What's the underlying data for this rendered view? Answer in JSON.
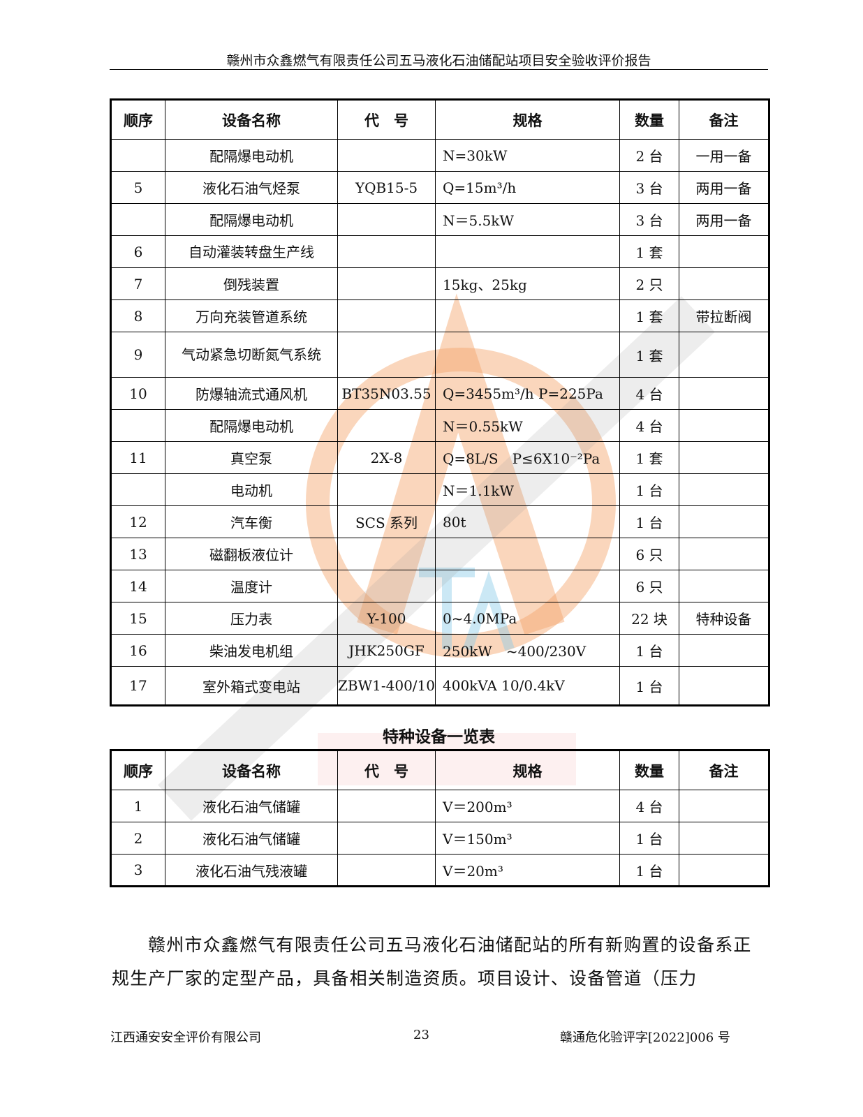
{
  "header": {
    "title": "赣州市众鑫燃气有限责任公司五马液化石油储配站项目安全验收评价报告"
  },
  "columns": [
    "顺序",
    "设备名称",
    "代　号",
    "规格",
    "数量",
    "备注"
  ],
  "equipment_rows": [
    [
      "",
      "配隔爆电动机",
      "",
      "N=30kW",
      "2 台",
      "一用一备"
    ],
    [
      "5",
      "液化石油气烃泵",
      "YQB15-5",
      "Q=15m³/h",
      "3 台",
      "两用一备"
    ],
    [
      "",
      "配隔爆电动机",
      "",
      "N＝5.5kW",
      "3 台",
      "两用一备"
    ],
    [
      "6",
      "自动灌装转盘生产线",
      "",
      "",
      "1 套",
      ""
    ],
    [
      "7",
      "倒残装置",
      "",
      "15kg、25kg",
      "2 只",
      ""
    ],
    [
      "8",
      "万向充装管道系统",
      "",
      "",
      "1 套",
      "带拉断阀"
    ],
    [
      "9",
      "气动紧急切断氮气系统",
      "",
      "",
      "1 套",
      ""
    ],
    [
      "10",
      "防爆轴流式通风机",
      "BT35N03.55",
      "Q=3455m³/h P=225Pa",
      "4 台",
      ""
    ],
    [
      "",
      "配隔爆电动机",
      "",
      "N＝0.55kW",
      "4 台",
      ""
    ],
    [
      "11",
      "真空泵",
      "2X-8",
      "Q=8L/S　P≤6X10⁻²Pa",
      "1 套",
      ""
    ],
    [
      "",
      "电动机",
      "",
      "N＝1.1kW",
      "1 台",
      ""
    ],
    [
      "12",
      "汽车衡",
      "SCS 系列",
      "80t",
      "1 台",
      ""
    ],
    [
      "13",
      "磁翻板液位计",
      "",
      "",
      "6 只",
      ""
    ],
    [
      "14",
      "温度计",
      "",
      "",
      "6 只",
      ""
    ],
    [
      "15",
      "压力表",
      "Y-100",
      "0~4.0MPa",
      "22 块",
      "特种设备"
    ],
    [
      "16",
      "柴油发电机组",
      "JHK250GF",
      "250kW　~400/230V",
      "1 台",
      ""
    ],
    [
      "17",
      "室外箱式变电站",
      "ZBW1-400/10",
      "400kVA 10/0.4kV",
      "1 台",
      ""
    ]
  ],
  "special_title": "特种设备一览表",
  "special_rows": [
    [
      "1",
      "液化石油气储罐",
      "",
      "V＝200m³",
      "4 台",
      ""
    ],
    [
      "2",
      "液化石油气储罐",
      "",
      "V＝150m³",
      "1 台",
      ""
    ],
    [
      "3",
      "液化石油气残液罐",
      "",
      "V＝20m³",
      "1 台",
      ""
    ]
  ],
  "paragraph": "赣州市众鑫燃气有限责任公司五马液化石油储配站的所有新购置的设备系正规生产厂家的定型产品，具备相关制造资质。项目设计、设备管道（压力",
  "footer": {
    "company": "江西通安安全评价有限公司",
    "page": "23",
    "doc_no": "赣通危化验评字[2022]006 号"
  },
  "watermark": {
    "text": "江西通安安全评价有限公司",
    "stamp": "江西通安",
    "logo_color": "#f5a36b",
    "text_color": "#9a9a9a"
  }
}
